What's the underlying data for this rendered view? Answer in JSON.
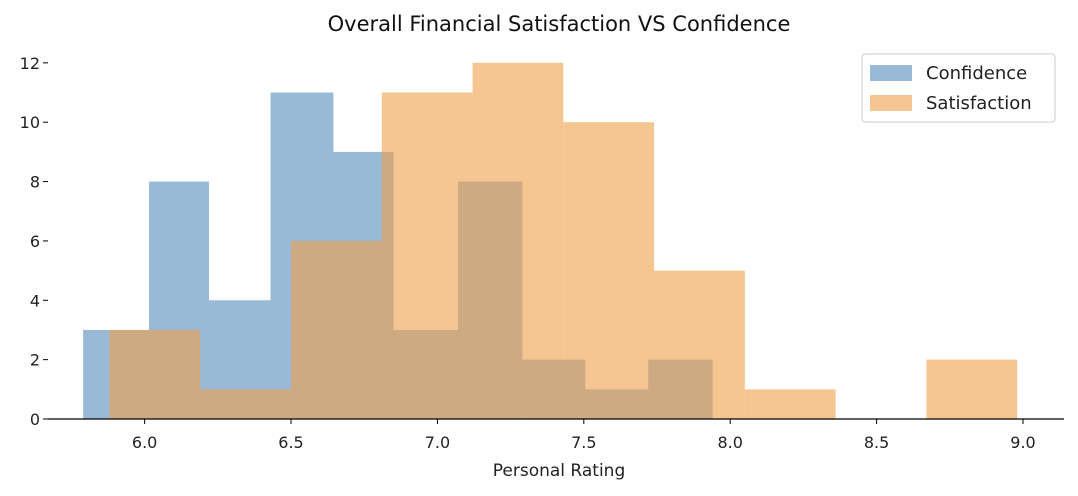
{
  "chart_data": {
    "type": "bar",
    "subtype": "overlapping-histogram",
    "title": "Overall Financial Satisfaction VS Confidence",
    "xlabel": "Personal Rating",
    "ylabel": "",
    "xlim": [
      5.67,
      9.14
    ],
    "ylim": [
      0,
      12.5
    ],
    "xticks": [
      "6.0",
      "6.5",
      "7.0",
      "7.5",
      "8.0",
      "8.5",
      "9.0"
    ],
    "yticks": [
      "0",
      "2",
      "4",
      "6",
      "8",
      "10",
      "12"
    ],
    "grid": false,
    "legend": "top-right",
    "series": [
      {
        "name": "Confidence",
        "color": "#4682b4",
        "opacity": 0.55,
        "bins": [
          {
            "x0": 5.79,
            "x1": 5.87,
            "count": 3
          },
          {
            "x0": 5.87,
            "x1": 6.015,
            "count": 3
          },
          {
            "x0": 6.015,
            "x1": 6.22,
            "count": 8
          },
          {
            "x0": 6.22,
            "x1": 6.43,
            "count": 4
          },
          {
            "x0": 6.43,
            "x1": 6.645,
            "count": 11
          },
          {
            "x0": 6.645,
            "x1": 6.85,
            "count": 9
          },
          {
            "x0": 6.85,
            "x1": 7.07,
            "count": 3
          },
          {
            "x0": 7.07,
            "x1": 7.29,
            "count": 8
          },
          {
            "x0": 7.29,
            "x1": 7.505,
            "count": 2
          },
          {
            "x0": 7.505,
            "x1": 7.72,
            "count": 1
          },
          {
            "x0": 7.72,
            "x1": 7.94,
            "count": 2
          }
        ]
      },
      {
        "name": "Satisfaction",
        "color": "#f0a04a",
        "opacity": 0.6,
        "bins": [
          {
            "x0": 5.88,
            "x1": 6.19,
            "count": 3
          },
          {
            "x0": 6.19,
            "x1": 6.5,
            "count": 1
          },
          {
            "x0": 6.5,
            "x1": 6.81,
            "count": 6
          },
          {
            "x0": 6.81,
            "x1": 7.12,
            "count": 11
          },
          {
            "x0": 7.12,
            "x1": 7.43,
            "count": 12
          },
          {
            "x0": 7.43,
            "x1": 7.74,
            "count": 10
          },
          {
            "x0": 7.74,
            "x1": 8.05,
            "count": 5
          },
          {
            "x0": 8.05,
            "x1": 8.36,
            "count": 1
          },
          {
            "x0": 8.36,
            "x1": 8.67,
            "count": 0
          },
          {
            "x0": 8.67,
            "x1": 8.98,
            "count": 2
          }
        ]
      }
    ]
  }
}
